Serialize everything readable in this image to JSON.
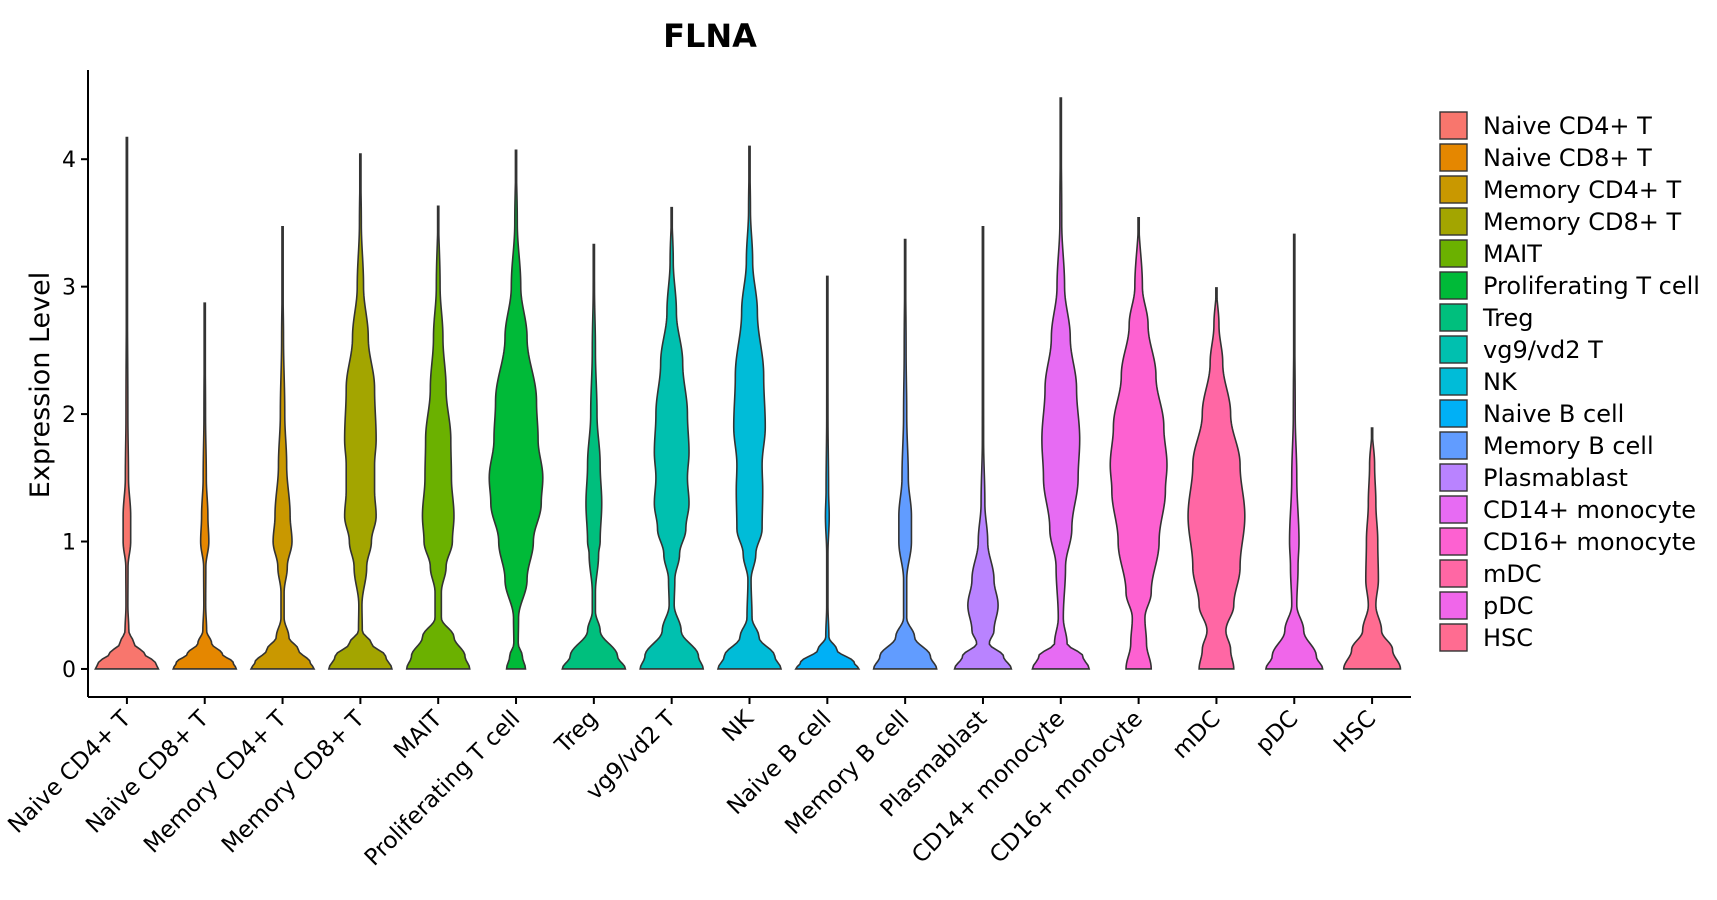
{
  "chart_data": {
    "type": "violin",
    "title": "FLNA",
    "xlabel": "",
    "ylabel": "Expression Level",
    "ylim": [
      -0.22,
      4.7
    ],
    "yticks": [
      0,
      1,
      2,
      3,
      4
    ],
    "legend_position": "right",
    "series": [
      {
        "name": "Naive CD4+ T",
        "color": "#F8766D",
        "max": 4.17,
        "maxw": 0.9,
        "profile": [
          [
            0,
            1.0
          ],
          [
            0.05,
            0.9
          ],
          [
            0.12,
            0.55
          ],
          [
            0.2,
            0.22
          ],
          [
            0.3,
            0.06
          ],
          [
            0.5,
            0.03
          ],
          [
            0.8,
            0.035
          ],
          [
            1.0,
            0.12
          ],
          [
            1.2,
            0.12
          ],
          [
            1.5,
            0.05
          ],
          [
            2.0,
            0.03
          ],
          [
            3.0,
            0.015
          ],
          [
            4.17,
            0.004
          ]
        ]
      },
      {
        "name": "Naive CD8+ T",
        "color": "#E58700",
        "max": 2.87,
        "maxw": 0.9,
        "profile": [
          [
            0,
            1.0
          ],
          [
            0.05,
            0.9
          ],
          [
            0.12,
            0.55
          ],
          [
            0.2,
            0.22
          ],
          [
            0.3,
            0.06
          ],
          [
            0.5,
            0.03
          ],
          [
            0.8,
            0.035
          ],
          [
            1.0,
            0.13
          ],
          [
            1.2,
            0.1
          ],
          [
            1.5,
            0.05
          ],
          [
            2.0,
            0.025
          ],
          [
            2.87,
            0.004
          ]
        ]
      },
      {
        "name": "Memory CD4+ T",
        "color": "#C99800",
        "max": 3.47,
        "maxw": 0.9,
        "profile": [
          [
            0,
            1.0
          ],
          [
            0.05,
            0.88
          ],
          [
            0.15,
            0.5
          ],
          [
            0.25,
            0.2
          ],
          [
            0.4,
            0.05
          ],
          [
            0.6,
            0.05
          ],
          [
            0.8,
            0.15
          ],
          [
            1.0,
            0.3
          ],
          [
            1.2,
            0.24
          ],
          [
            1.6,
            0.13
          ],
          [
            2.0,
            0.07
          ],
          [
            2.6,
            0.03
          ],
          [
            3.0,
            0.015
          ],
          [
            3.47,
            0.004
          ]
        ]
      },
      {
        "name": "Memory CD8+ T",
        "color": "#A3A500",
        "max": 4.04,
        "maxw": 0.9,
        "profile": [
          [
            0,
            1.0
          ],
          [
            0.1,
            0.8
          ],
          [
            0.2,
            0.35
          ],
          [
            0.3,
            0.06
          ],
          [
            0.5,
            0.05
          ],
          [
            0.8,
            0.2
          ],
          [
            1.0,
            0.35
          ],
          [
            1.2,
            0.5
          ],
          [
            1.4,
            0.45
          ],
          [
            1.6,
            0.45
          ],
          [
            1.8,
            0.5
          ],
          [
            2.2,
            0.45
          ],
          [
            2.6,
            0.25
          ],
          [
            3.0,
            0.1
          ],
          [
            3.5,
            0.03
          ],
          [
            4.04,
            0.004
          ]
        ]
      },
      {
        "name": "MAIT",
        "color": "#6BB100",
        "max": 3.63,
        "maxw": 0.9,
        "profile": [
          [
            0,
            1.0
          ],
          [
            0.1,
            0.85
          ],
          [
            0.25,
            0.5
          ],
          [
            0.4,
            0.1
          ],
          [
            0.6,
            0.1
          ],
          [
            0.8,
            0.25
          ],
          [
            1.0,
            0.45
          ],
          [
            1.2,
            0.5
          ],
          [
            1.5,
            0.42
          ],
          [
            1.8,
            0.4
          ],
          [
            2.2,
            0.25
          ],
          [
            2.6,
            0.15
          ],
          [
            3.0,
            0.06
          ],
          [
            3.63,
            0.004
          ]
        ]
      },
      {
        "name": "Proliferating T cell",
        "color": "#00BA38",
        "max": 4.07,
        "maxw": 0.9,
        "profile": [
          [
            0,
            0.3
          ],
          [
            0.1,
            0.2
          ],
          [
            0.2,
            0.07
          ],
          [
            0.4,
            0.08
          ],
          [
            0.7,
            0.35
          ],
          [
            1.0,
            0.55
          ],
          [
            1.3,
            0.8
          ],
          [
            1.5,
            0.85
          ],
          [
            1.8,
            0.7
          ],
          [
            2.1,
            0.65
          ],
          [
            2.6,
            0.35
          ],
          [
            3.0,
            0.15
          ],
          [
            3.5,
            0.04
          ],
          [
            4.07,
            0.004
          ]
        ]
      },
      {
        "name": "Treg",
        "color": "#00BF7D",
        "max": 3.33,
        "maxw": 0.9,
        "profile": [
          [
            0,
            1.0
          ],
          [
            0.1,
            0.75
          ],
          [
            0.3,
            0.2
          ],
          [
            0.45,
            0.05
          ],
          [
            0.6,
            0.05
          ],
          [
            0.9,
            0.15
          ],
          [
            1.0,
            0.2
          ],
          [
            1.3,
            0.25
          ],
          [
            1.6,
            0.2
          ],
          [
            2.0,
            0.1
          ],
          [
            2.5,
            0.05
          ],
          [
            3.0,
            0.02
          ],
          [
            3.33,
            0.004
          ]
        ]
      },
      {
        "name": "vg9/vd2 T",
        "color": "#00C0AF",
        "max": 3.62,
        "maxw": 0.9,
        "profile": [
          [
            0,
            1.0
          ],
          [
            0.1,
            0.85
          ],
          [
            0.3,
            0.3
          ],
          [
            0.5,
            0.08
          ],
          [
            0.7,
            0.1
          ],
          [
            0.9,
            0.25
          ],
          [
            1.1,
            0.45
          ],
          [
            1.3,
            0.55
          ],
          [
            1.5,
            0.5
          ],
          [
            1.7,
            0.55
          ],
          [
            2.0,
            0.5
          ],
          [
            2.4,
            0.35
          ],
          [
            2.8,
            0.15
          ],
          [
            3.2,
            0.05
          ],
          [
            3.62,
            0.004
          ]
        ]
      },
      {
        "name": "NK",
        "color": "#00BCD8",
        "max": 4.1,
        "maxw": 0.9,
        "profile": [
          [
            0,
            1.0
          ],
          [
            0.1,
            0.8
          ],
          [
            0.25,
            0.3
          ],
          [
            0.4,
            0.08
          ],
          [
            0.7,
            0.05
          ],
          [
            0.9,
            0.2
          ],
          [
            1.1,
            0.4
          ],
          [
            1.4,
            0.42
          ],
          [
            1.6,
            0.4
          ],
          [
            1.9,
            0.5
          ],
          [
            2.3,
            0.45
          ],
          [
            2.8,
            0.25
          ],
          [
            3.2,
            0.1
          ],
          [
            3.6,
            0.03
          ],
          [
            4.1,
            0.004
          ]
        ]
      },
      {
        "name": "Naive B cell",
        "color": "#00B0F6",
        "max": 3.08,
        "maxw": 0.9,
        "profile": [
          [
            0,
            1.0
          ],
          [
            0.05,
            0.85
          ],
          [
            0.15,
            0.3
          ],
          [
            0.25,
            0.05
          ],
          [
            0.5,
            0.02
          ],
          [
            0.9,
            0.02
          ],
          [
            1.2,
            0.06
          ],
          [
            1.4,
            0.04
          ],
          [
            2.0,
            0.02
          ],
          [
            3.08,
            0.004
          ]
        ]
      },
      {
        "name": "Memory B cell",
        "color": "#619CFF",
        "max": 3.37,
        "maxw": 0.9,
        "profile": [
          [
            0,
            1.0
          ],
          [
            0.1,
            0.8
          ],
          [
            0.25,
            0.3
          ],
          [
            0.4,
            0.05
          ],
          [
            0.7,
            0.05
          ],
          [
            1.0,
            0.2
          ],
          [
            1.2,
            0.2
          ],
          [
            1.5,
            0.1
          ],
          [
            2.0,
            0.05
          ],
          [
            2.5,
            0.03
          ],
          [
            3.37,
            0.004
          ]
        ]
      },
      {
        "name": "Plasmablast",
        "color": "#B983FF",
        "max": 3.47,
        "maxw": 0.9,
        "profile": [
          [
            0,
            0.9
          ],
          [
            0.1,
            0.65
          ],
          [
            0.2,
            0.2
          ],
          [
            0.3,
            0.35
          ],
          [
            0.5,
            0.48
          ],
          [
            0.7,
            0.35
          ],
          [
            1.0,
            0.15
          ],
          [
            1.3,
            0.06
          ],
          [
            1.8,
            0.02
          ],
          [
            3.47,
            0.004
          ]
        ]
      },
      {
        "name": "CD14+ monocyte",
        "color": "#E76BF3",
        "max": 4.48,
        "maxw": 0.9,
        "profile": [
          [
            0,
            0.9
          ],
          [
            0.1,
            0.7
          ],
          [
            0.2,
            0.2
          ],
          [
            0.4,
            0.08
          ],
          [
            0.8,
            0.15
          ],
          [
            1.1,
            0.35
          ],
          [
            1.5,
            0.55
          ],
          [
            1.8,
            0.6
          ],
          [
            2.2,
            0.5
          ],
          [
            2.6,
            0.3
          ],
          [
            3.0,
            0.12
          ],
          [
            3.5,
            0.03
          ],
          [
            4.48,
            0.004
          ]
        ]
      },
      {
        "name": "CD16+ monocyte",
        "color": "#FD61D1",
        "max": 3.54,
        "maxw": 0.9,
        "profile": [
          [
            0,
            0.4
          ],
          [
            0.2,
            0.25
          ],
          [
            0.4,
            0.2
          ],
          [
            0.6,
            0.4
          ],
          [
            1.0,
            0.65
          ],
          [
            1.4,
            0.85
          ],
          [
            1.6,
            0.9
          ],
          [
            1.9,
            0.8
          ],
          [
            2.3,
            0.55
          ],
          [
            2.7,
            0.3
          ],
          [
            3.0,
            0.12
          ],
          [
            3.54,
            0.004
          ]
        ]
      },
      {
        "name": "mDC",
        "color": "#FF67A4",
        "max": 2.99,
        "maxw": 0.9,
        "profile": [
          [
            0,
            0.55
          ],
          [
            0.15,
            0.45
          ],
          [
            0.3,
            0.3
          ],
          [
            0.5,
            0.55
          ],
          [
            0.8,
            0.75
          ],
          [
            1.2,
            0.9
          ],
          [
            1.6,
            0.75
          ],
          [
            2.0,
            0.45
          ],
          [
            2.4,
            0.2
          ],
          [
            2.7,
            0.08
          ],
          [
            2.99,
            0.004
          ]
        ]
      },
      {
        "name": "pDC",
        "color": "#F066EA",
        "max": 3.41,
        "maxw": 0.9,
        "profile": [
          [
            0,
            0.9
          ],
          [
            0.1,
            0.7
          ],
          [
            0.3,
            0.3
          ],
          [
            0.5,
            0.08
          ],
          [
            0.8,
            0.12
          ],
          [
            1.0,
            0.15
          ],
          [
            1.5,
            0.08
          ],
          [
            2.0,
            0.03
          ],
          [
            2.8,
            0.012
          ],
          [
            3.41,
            0.004
          ]
        ]
      },
      {
        "name": "HSC",
        "color": "#FF6C91",
        "max": 1.89,
        "maxw": 0.9,
        "profile": [
          [
            0,
            0.9
          ],
          [
            0.15,
            0.65
          ],
          [
            0.3,
            0.3
          ],
          [
            0.5,
            0.12
          ],
          [
            0.7,
            0.2
          ],
          [
            1.0,
            0.18
          ],
          [
            1.3,
            0.12
          ],
          [
            1.6,
            0.08
          ],
          [
            1.89,
            0.004
          ]
        ]
      }
    ]
  }
}
